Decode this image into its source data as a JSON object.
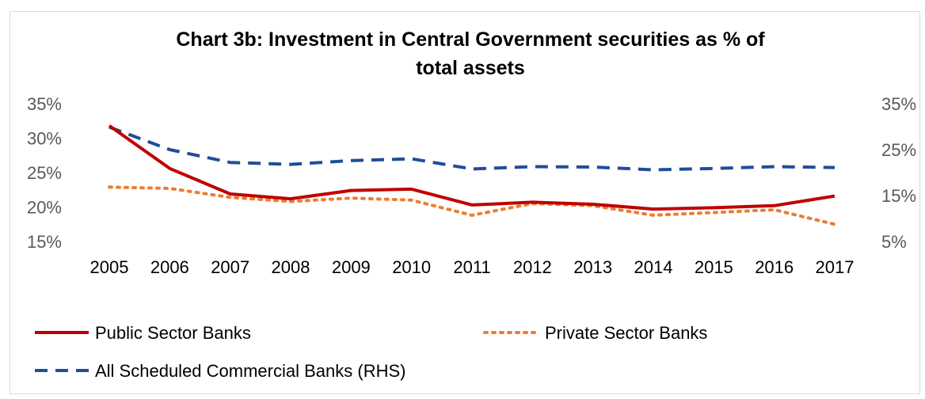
{
  "chart_data": {
    "type": "line",
    "title_line1": "Chart 3b: Investment in Central Government securities  as % of",
    "title_line2": "total assets",
    "x": [
      "2005",
      "2006",
      "2007",
      "2008",
      "2009",
      "2010",
      "2011",
      "2012",
      "2013",
      "2014",
      "2015",
      "2016",
      "2017"
    ],
    "y_left": {
      "ticks": [
        "35%",
        "30%",
        "25%",
        "20%",
        "15%"
      ],
      "range": [
        15,
        35
      ]
    },
    "y_right": {
      "ticks": [
        "35%",
        "25%",
        "15%",
        "5%"
      ],
      "range": [
        5,
        35
      ]
    },
    "legend_placement": "bottom",
    "series": [
      {
        "name": "Public Sector Banks",
        "axis": "left",
        "style": "solid",
        "color": "#c00000",
        "values": [
          31.8,
          25.6,
          21.9,
          21.2,
          22.4,
          22.6,
          20.3,
          20.7,
          20.4,
          19.7,
          19.9,
          20.2,
          21.6
        ]
      },
      {
        "name": "Private Sector Banks",
        "axis": "left",
        "style": "dotted",
        "color": "#ed7d31",
        "values": [
          22.9,
          22.7,
          21.4,
          20.8,
          21.3,
          21.0,
          18.8,
          20.5,
          20.2,
          18.8,
          19.2,
          19.6,
          17.5
        ]
      },
      {
        "name": "All Scheduled Commercial Banks (RHS)",
        "axis": "right",
        "style": "dashed",
        "color": "#1f4e9a",
        "values": [
          29.9,
          25.0,
          22.2,
          21.8,
          22.6,
          23.0,
          20.8,
          21.3,
          21.2,
          20.6,
          20.9,
          21.3,
          21.1
        ]
      }
    ]
  }
}
